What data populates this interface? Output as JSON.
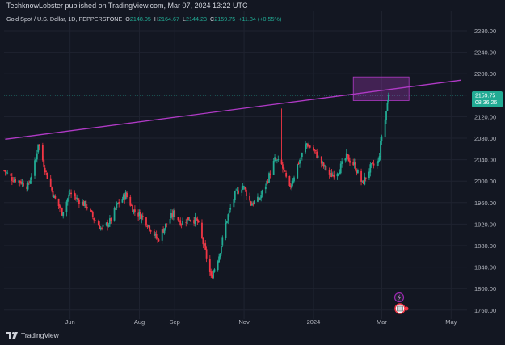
{
  "header": {
    "publisher_text": "TechknowLobster published on TradingView.com, Mar 07, 2024 13:22 UTC",
    "symbol": "Gold Spot / U.S. Dollar, 1D, PEPPERSTONE",
    "open_label": "O",
    "open": "2148.05",
    "high_label": "H",
    "high": "2164.67",
    "low_label": "L",
    "low": "2144.23",
    "close_label": "C",
    "close": "2159.75",
    "change": "+11.84 (+0.55%)"
  },
  "price_tag": {
    "price": "2159.75",
    "countdown": "08:36:26"
  },
  "brand": {
    "name": "TradingView"
  },
  "colors": {
    "up": "#22ab94",
    "down": "#f23645",
    "trendline": "#b03ac6",
    "background": "#131722"
  },
  "icons": [
    "lightning-icon",
    "calendar-icon",
    "tradingview-logo-icon"
  ],
  "chart_data": {
    "type": "candlestick",
    "symbol": "Gold Spot / U.S. Dollar, 1D, PEPPERSTONE",
    "y_ticks": [
      "2280.00",
      "2240.00",
      "2200.00",
      "2160.00",
      "2120.00",
      "2080.00",
      "2040.00",
      "2000.00",
      "1960.00",
      "1920.00",
      "1880.00",
      "1840.00",
      "1800.00",
      "1760.00"
    ],
    "y_tick_values": [
      2280,
      2240,
      2200,
      2160,
      2120,
      2080,
      2040,
      2000,
      1960,
      1920,
      1880,
      1840,
      1800,
      1760
    ],
    "x_ticks": [
      "Jun",
      "Aug",
      "Sep",
      "Nov",
      "2024",
      "Mar",
      "May"
    ],
    "x_tick_dates": [
      "2023-06-01",
      "2023-08-01",
      "2023-09-01",
      "2023-11-01",
      "2024-01-01",
      "2024-03-01",
      "2024-05-01"
    ],
    "ylim": [
      1740,
      2300
    ],
    "xlim": [
      "2023-04-04",
      "2024-05-15"
    ],
    "trendline": {
      "from": {
        "date": "2023-04-05",
        "price": 2078
      },
      "to": {
        "date": "2024-05-10",
        "price": 2188
      }
    },
    "resistance_zone": {
      "from_date": "2024-02-05",
      "to_date": "2024-03-25",
      "price_low": 2150,
      "price_high": 2194
    },
    "last_price": 2159.75,
    "series": [
      {
        "date": "2023-04-04",
        "close": 2020
      },
      {
        "date": "2023-04-11",
        "close": 2005
      },
      {
        "date": "2023-04-18",
        "close": 2000
      },
      {
        "date": "2023-04-25",
        "close": 1990
      },
      {
        "date": "2023-05-02",
        "close": 2040
      },
      {
        "date": "2023-05-04",
        "close": 2072
      },
      {
        "date": "2023-05-11",
        "close": 2015
      },
      {
        "date": "2023-05-18",
        "close": 1970
      },
      {
        "date": "2023-05-25",
        "close": 1942
      },
      {
        "date": "2023-06-01",
        "close": 1978
      },
      {
        "date": "2023-06-08",
        "close": 1965
      },
      {
        "date": "2023-06-15",
        "close": 1955
      },
      {
        "date": "2023-06-22",
        "close": 1930
      },
      {
        "date": "2023-06-29",
        "close": 1910
      },
      {
        "date": "2023-07-06",
        "close": 1925
      },
      {
        "date": "2023-07-13",
        "close": 1958
      },
      {
        "date": "2023-07-20",
        "close": 1975
      },
      {
        "date": "2023-07-27",
        "close": 1945
      },
      {
        "date": "2023-08-03",
        "close": 1935
      },
      {
        "date": "2023-08-10",
        "close": 1915
      },
      {
        "date": "2023-08-17",
        "close": 1890
      },
      {
        "date": "2023-08-24",
        "close": 1918
      },
      {
        "date": "2023-08-31",
        "close": 1940
      },
      {
        "date": "2023-09-07",
        "close": 1922
      },
      {
        "date": "2023-09-14",
        "close": 1932
      },
      {
        "date": "2023-09-21",
        "close": 1925
      },
      {
        "date": "2023-09-28",
        "close": 1868
      },
      {
        "date": "2023-10-03",
        "close": 1820
      },
      {
        "date": "2023-10-10",
        "close": 1862
      },
      {
        "date": "2023-10-17",
        "close": 1930
      },
      {
        "date": "2023-10-24",
        "close": 1975
      },
      {
        "date": "2023-10-31",
        "close": 1992
      },
      {
        "date": "2023-11-07",
        "close": 1958
      },
      {
        "date": "2023-11-14",
        "close": 1965
      },
      {
        "date": "2023-11-21",
        "close": 1998
      },
      {
        "date": "2023-11-28",
        "close": 2040
      },
      {
        "date": "2023-12-04",
        "close": 2030
      },
      {
        "date": "2023-12-11",
        "close": 1985
      },
      {
        "date": "2023-12-18",
        "close": 2030
      },
      {
        "date": "2023-12-26",
        "close": 2070
      },
      {
        "date": "2024-01-02",
        "close": 2055
      },
      {
        "date": "2024-01-09",
        "close": 2030
      },
      {
        "date": "2024-01-16",
        "close": 2010
      },
      {
        "date": "2024-01-23",
        "close": 2020
      },
      {
        "date": "2024-01-30",
        "close": 2045
      },
      {
        "date": "2024-02-06",
        "close": 2030
      },
      {
        "date": "2024-02-13",
        "close": 1995
      },
      {
        "date": "2024-02-20",
        "close": 2025
      },
      {
        "date": "2024-02-27",
        "close": 2035
      },
      {
        "date": "2024-03-01",
        "close": 2085
      },
      {
        "date": "2024-03-04",
        "close": 2115
      },
      {
        "date": "2024-03-07",
        "close": 2159.75
      }
    ]
  }
}
